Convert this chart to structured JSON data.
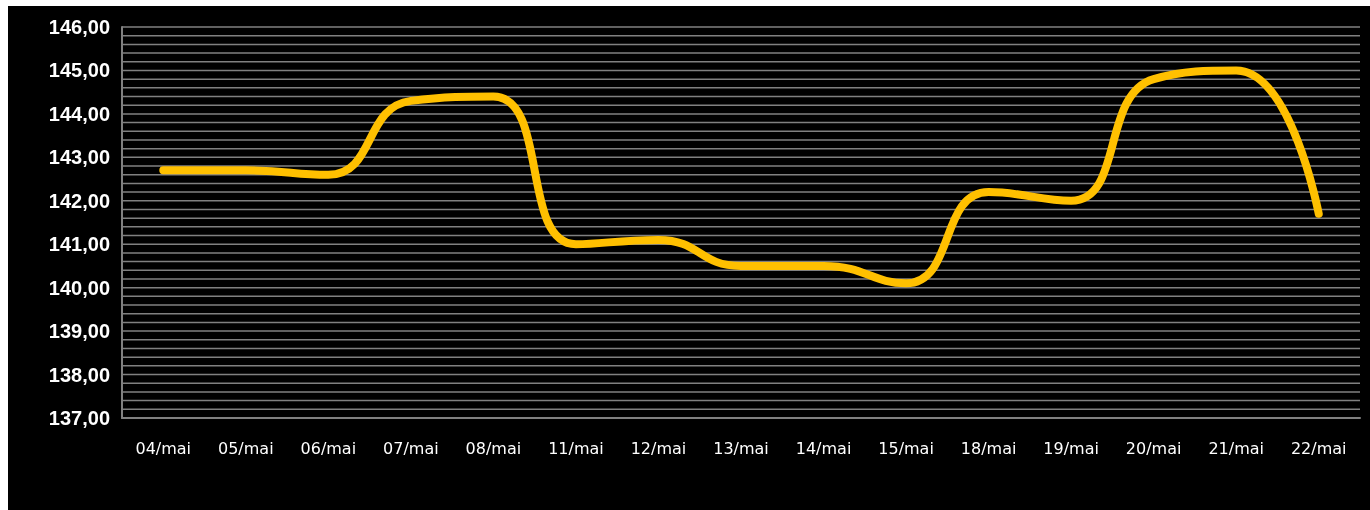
{
  "chart_data": {
    "type": "line",
    "categories": [
      "04/mai",
      "05/mai",
      "06/mai",
      "07/mai",
      "08/mai",
      "11/mai",
      "12/mai",
      "13/mai",
      "14/mai",
      "15/mai",
      "18/mai",
      "19/mai",
      "20/mai",
      "21/mai",
      "22/mai"
    ],
    "series": [
      {
        "color": "#ffc000",
        "values": [
          142.7,
          142.7,
          142.6,
          144.3,
          144.4,
          141.0,
          141.1,
          140.5,
          140.5,
          140.1,
          142.2,
          142.0,
          144.8,
          145.0,
          141.7
        ]
      }
    ],
    "ylim": [
      137,
      146
    ],
    "yticks": [
      {
        "value": 137,
        "label": "137,00"
      },
      {
        "value": 137.2,
        "label": null
      },
      {
        "value": 137.4,
        "label": null
      },
      {
        "value": 137.6,
        "label": null
      },
      {
        "value": 137.8,
        "label": null
      },
      {
        "value": 138,
        "label": "138,00"
      },
      {
        "value": 138.2,
        "label": null
      },
      {
        "value": 138.4,
        "label": null
      },
      {
        "value": 138.6,
        "label": null
      },
      {
        "value": 138.8,
        "label": null
      },
      {
        "value": 139,
        "label": "139,00"
      },
      {
        "value": 139.2,
        "label": null
      },
      {
        "value": 139.4,
        "label": null
      },
      {
        "value": 139.6,
        "label": null
      },
      {
        "value": 139.8,
        "label": null
      },
      {
        "value": 140,
        "label": "140,00"
      },
      {
        "value": 140.2,
        "label": null
      },
      {
        "value": 140.4,
        "label": null
      },
      {
        "value": 140.6,
        "label": null
      },
      {
        "value": 140.8,
        "label": null
      },
      {
        "value": 141,
        "label": "141,00"
      },
      {
        "value": 141.2,
        "label": null
      },
      {
        "value": 141.4,
        "label": null
      },
      {
        "value": 141.6,
        "label": null
      },
      {
        "value": 141.8,
        "label": null
      },
      {
        "value": 142,
        "label": "142,00"
      },
      {
        "value": 142.2,
        "label": null
      },
      {
        "value": 142.4,
        "label": null
      },
      {
        "value": 142.6,
        "label": null
      },
      {
        "value": 142.8,
        "label": null
      },
      {
        "value": 143,
        "label": "143,00"
      },
      {
        "value": 143.2,
        "label": null
      },
      {
        "value": 143.4,
        "label": null
      },
      {
        "value": 143.6,
        "label": null
      },
      {
        "value": 143.8,
        "label": null
      },
      {
        "value": 144,
        "label": "144,00"
      },
      {
        "value": 144.2,
        "label": null
      },
      {
        "value": 144.4,
        "label": null
      },
      {
        "value": 144.6,
        "label": null
      },
      {
        "value": 144.8,
        "label": null
      },
      {
        "value": 145,
        "label": "145,00"
      },
      {
        "value": 145.2,
        "label": null
      },
      {
        "value": 145.4,
        "label": null
      },
      {
        "value": 145.6,
        "label": null
      },
      {
        "value": 145.8,
        "label": null
      },
      {
        "value": 146,
        "label": "146,00"
      }
    ],
    "grid": "y",
    "line_style": "solid"
  }
}
